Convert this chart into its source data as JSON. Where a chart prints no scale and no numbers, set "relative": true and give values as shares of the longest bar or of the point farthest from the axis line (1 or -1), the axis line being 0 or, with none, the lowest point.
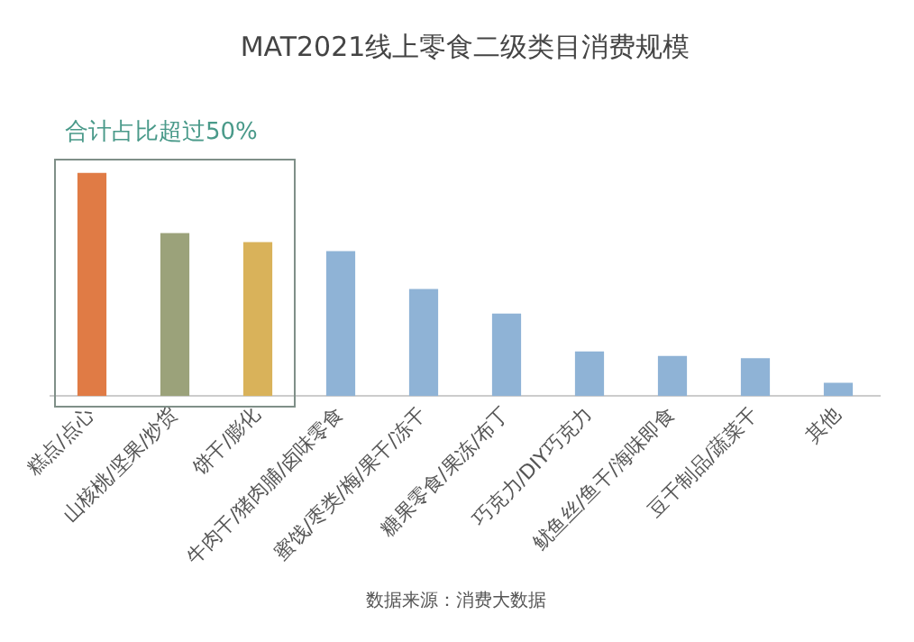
{
  "chart_data": {
    "type": "bar",
    "title": "MAT2021线上零食二级类目消费规模",
    "relative": true,
    "categories": [
      "糕点/点心",
      "山核桃/坚果/炒货",
      "饼干/膨化",
      "牛肉干/猪肉脯/卤味零食",
      "蜜饯/枣类/梅/果干/冻干",
      "糖果零食/果冻/布丁",
      "巧克力/DIY巧克力",
      "鱿鱼丝/鱼干/海味即食",
      "豆干制品/蔬菜干",
      "其他"
    ],
    "values": [
      1,
      0.73,
      0.69,
      0.65,
      0.48,
      0.37,
      0.2,
      0.18,
      0.17,
      0.06
    ],
    "colors": [
      "#e07b45",
      "#9ba27a",
      "#d9b25a",
      "#8fb3d6",
      "#8fb3d6",
      "#8fb3d6",
      "#8fb3d6",
      "#8fb3d6",
      "#8fb3d6",
      "#8fb3d6"
    ],
    "annotations": [
      "合计占比超过50%",
      "数据来源：消费大数据"
    ],
    "grid": false,
    "legend": false
  }
}
